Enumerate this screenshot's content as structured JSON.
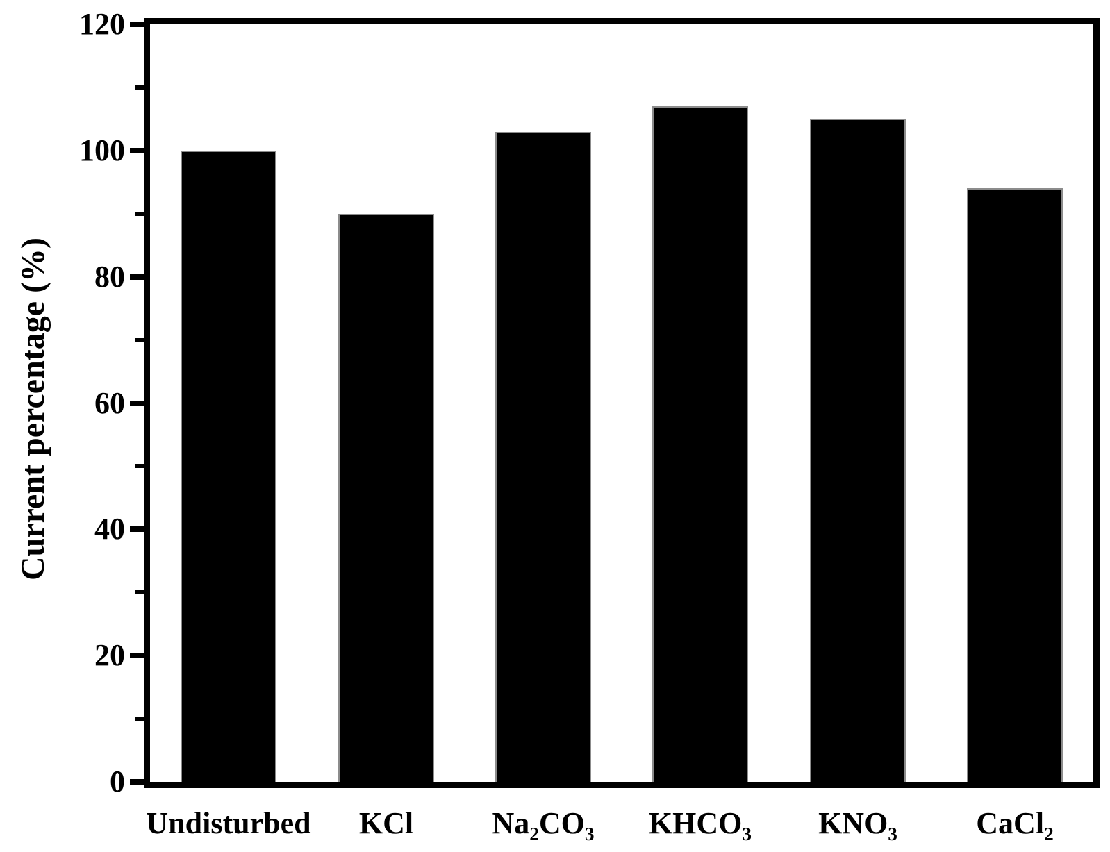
{
  "chart_data": {
    "type": "bar",
    "title": "",
    "ylabel": "Current percentage (%)",
    "xlabel": "",
    "ylim": [
      0,
      120
    ],
    "y_major_ticks": [
      0,
      20,
      40,
      60,
      80,
      100,
      120
    ],
    "y_minor_ticks": [
      10,
      30,
      50,
      70,
      90,
      110
    ],
    "categories": [
      "Undisturbed",
      "KCl",
      "Na2CO3",
      "KHCO3",
      "KNO3",
      "CaCl2"
    ],
    "categories_rich": [
      [
        {
          "t": "Undisturbed"
        }
      ],
      [
        {
          "t": "KCl"
        }
      ],
      [
        {
          "t": "Na"
        },
        {
          "t": "2",
          "sub": true
        },
        {
          "t": "CO"
        },
        {
          "t": "3",
          "sub": true
        }
      ],
      [
        {
          "t": "KHCO"
        },
        {
          "t": "3",
          "sub": true
        }
      ],
      [
        {
          "t": "KNO"
        },
        {
          "t": "3",
          "sub": true
        }
      ],
      [
        {
          "t": "CaCl"
        },
        {
          "t": "2",
          "sub": true
        }
      ]
    ],
    "values": [
      100,
      90,
      103,
      107,
      105,
      94
    ],
    "bar_color": "#000000",
    "bar_edge_color": "#8c8c8c",
    "axis_color": "#000000",
    "background_color": "#ffffff",
    "grid": false,
    "legend": null,
    "bar_width_fraction": 0.61
  }
}
